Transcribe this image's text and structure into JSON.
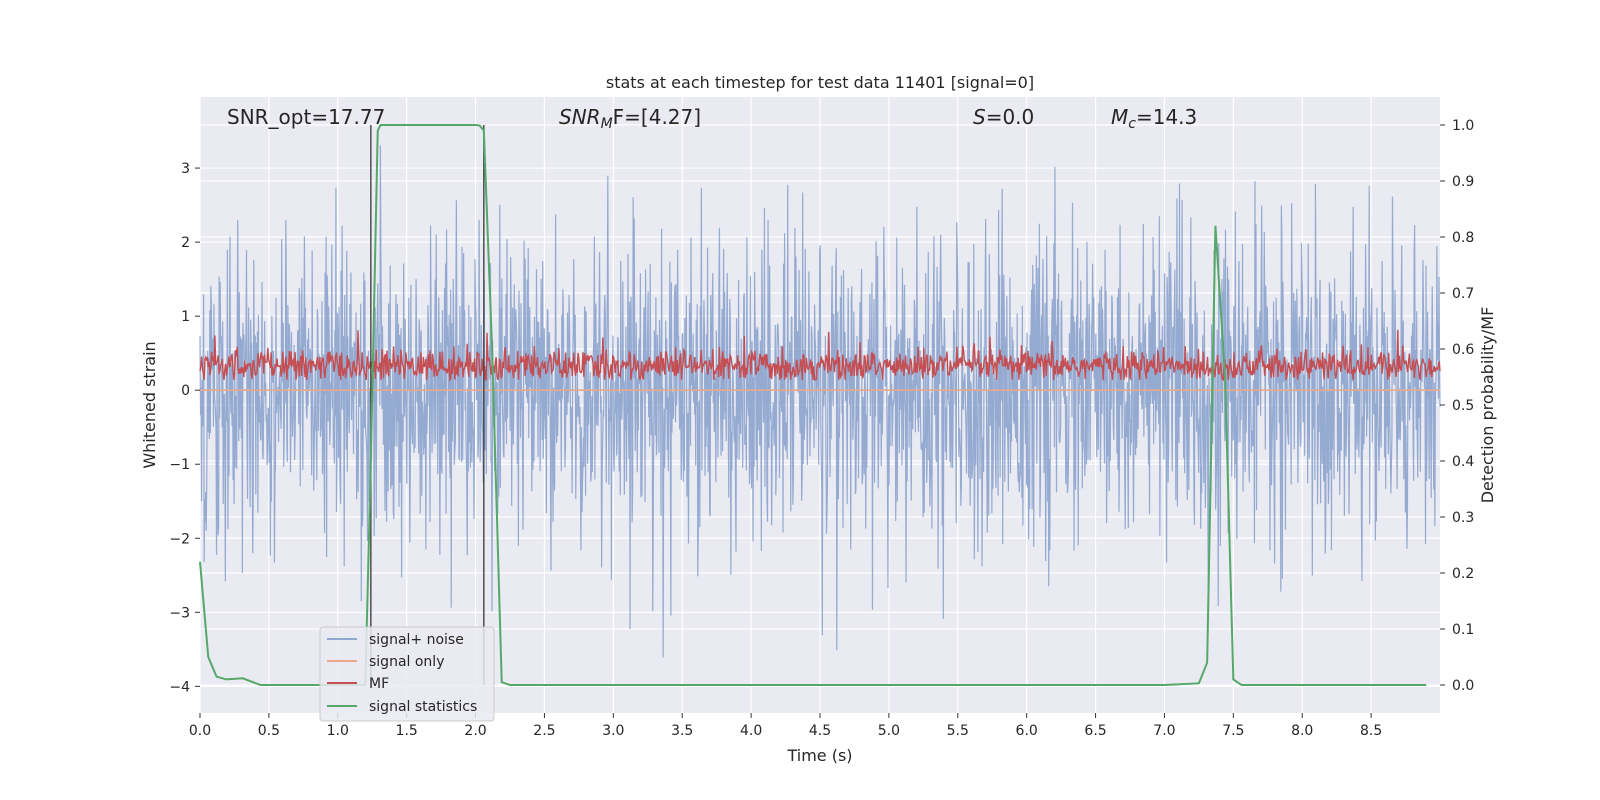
{
  "chart_data": {
    "type": "line",
    "title": "stats at each timestep for test data 11401 [signal=0]",
    "xlabel": "Time (s)",
    "ylabel_left": "Whitened strain",
    "ylabel_right": "Detection probability/MF",
    "xlim": [
      0.0,
      9.0
    ],
    "ylim_left": [
      -4.36,
      3.96
    ],
    "ylim_right": [
      -0.05,
      1.05
    ],
    "x_ticks": [
      "0.0",
      "0.5",
      "1.0",
      "1.5",
      "2.0",
      "2.5",
      "3.0",
      "3.5",
      "4.0",
      "4.5",
      "5.0",
      "5.5",
      "6.0",
      "6.5",
      "7.0",
      "7.5",
      "8.0",
      "8.5"
    ],
    "x_tick_values": [
      0.0,
      0.5,
      1.0,
      1.5,
      2.0,
      2.5,
      3.0,
      3.5,
      4.0,
      4.5,
      5.0,
      5.5,
      6.0,
      6.5,
      7.0,
      7.5,
      8.0,
      8.5
    ],
    "y_left_ticks": [
      "−4",
      "−3",
      "−2",
      "−1",
      "0",
      "1",
      "2",
      "3"
    ],
    "y_left_tick_values": [
      -4,
      -3,
      -2,
      -1,
      0,
      1,
      2,
      3
    ],
    "y_right_ticks": [
      "0.0",
      "0.1",
      "0.2",
      "0.3",
      "0.4",
      "0.5",
      "0.6",
      "0.7",
      "0.8",
      "0.9",
      "1.0"
    ],
    "y_right_tick_values": [
      0.0,
      0.1,
      0.2,
      0.3,
      0.4,
      0.5,
      0.6,
      0.7,
      0.8,
      0.9,
      1.0
    ],
    "grid": true,
    "legend_position": "bottom-left",
    "annotations": {
      "snr_opt": "SNR_opt=17.77",
      "snr_mf_label": "SNR",
      "snr_mf_sub": "M",
      "snr_mf_tail": "F=[4.27]",
      "s_label": "S",
      "s_value": "=0.0",
      "mc_label": "M",
      "mc_sub": "c",
      "mc_value": "=14.3"
    },
    "vertical_lines_x": [
      1.24,
      2.06
    ],
    "series": [
      {
        "name": "signal+ noise",
        "axis": "left",
        "color": "#8fa6cf",
        "kind": "noise",
        "amplitude_sd": 1.0
      },
      {
        "name": "signal only",
        "axis": "left",
        "color": "#e8a98a",
        "kind": "flat",
        "level": 0.0
      },
      {
        "name": "MF",
        "axis": "right",
        "color": "#c44e52",
        "kind": "mf",
        "mean": 0.57,
        "range": [
          0.55,
          0.63
        ]
      },
      {
        "name": "signal statistics",
        "axis": "right",
        "color": "#55a868",
        "kind": "line",
        "x": [
          0.0,
          0.06,
          0.12,
          0.19,
          0.31,
          0.44,
          0.62,
          0.75,
          1.0,
          1.2,
          1.24,
          1.29,
          1.31,
          1.5,
          1.8,
          2.0,
          2.03,
          2.06,
          2.12,
          2.19,
          2.25,
          3.0,
          4.0,
          5.0,
          6.0,
          7.0,
          7.25,
          7.31,
          7.37,
          7.44,
          7.5,
          7.56,
          8.0,
          8.5,
          8.9
        ],
        "y": [
          0.22,
          0.05,
          0.015,
          0.01,
          0.012,
          0.0,
          0.0,
          0.0,
          0.0,
          0.0,
          0.4,
          0.99,
          1.0,
          1.0,
          1.0,
          1.0,
          0.999,
          0.99,
          0.6,
          0.005,
          0.0,
          0.0,
          0.0,
          0.0,
          0.0,
          0.0,
          0.003,
          0.04,
          0.82,
          0.55,
          0.01,
          0.0,
          0.0,
          0.0,
          0.0
        ]
      }
    ]
  },
  "colors": {
    "axes_bg": "#eaeaf2",
    "grid": "#ffffff",
    "vline": "#444444"
  }
}
